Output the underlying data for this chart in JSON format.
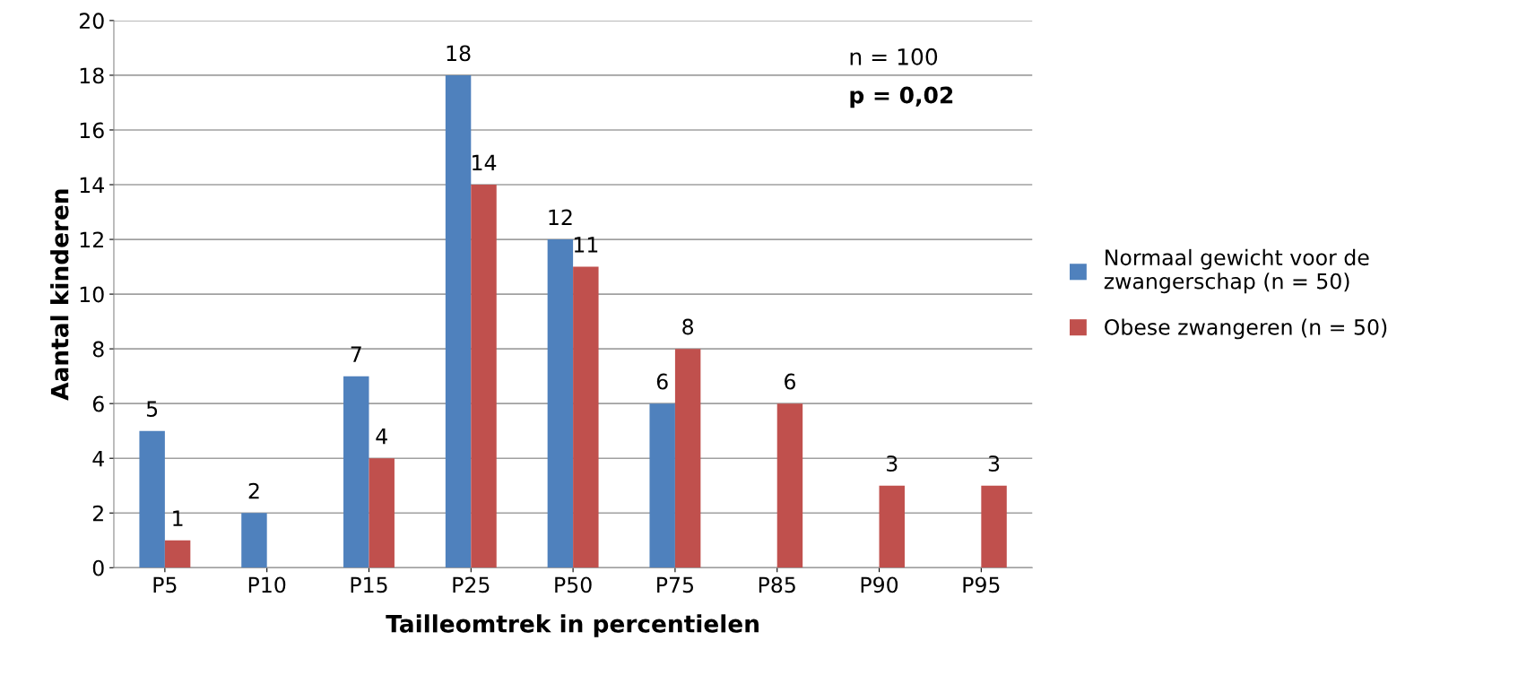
{
  "chart_data": {
    "type": "bar",
    "xlabel": "Tailleomtrek in percentielen",
    "ylabel": "Aantal kinderen",
    "categories": [
      "P5",
      "P10",
      "P15",
      "P25",
      "P50",
      "P75",
      "P85",
      "P90",
      "P95"
    ],
    "series": [
      {
        "name": "Normaal gewicht voor de zwangerschap (n = 50)",
        "color": "#4f81bd",
        "values": [
          5,
          2,
          7,
          18,
          12,
          6,
          0,
          0,
          0
        ],
        "value_labels": [
          "5",
          "2",
          "7",
          "18",
          "12",
          "6",
          null,
          null,
          null
        ]
      },
      {
        "name": "Obese zwangeren (n = 50)",
        "color": "#c0504d",
        "values": [
          1,
          0,
          4,
          14,
          11,
          8,
          6,
          3,
          3
        ],
        "value_labels": [
          "1",
          null,
          "4",
          "14",
          "11",
          "8",
          "6",
          "3",
          "3"
        ]
      }
    ],
    "ylim": [
      0,
      20
    ],
    "yticks": [
      0,
      2,
      4,
      6,
      8,
      10,
      12,
      14,
      16,
      18,
      20
    ],
    "grid": "y",
    "legend": "right",
    "annotations": [
      "n = 100",
      "p = 0,02"
    ]
  }
}
